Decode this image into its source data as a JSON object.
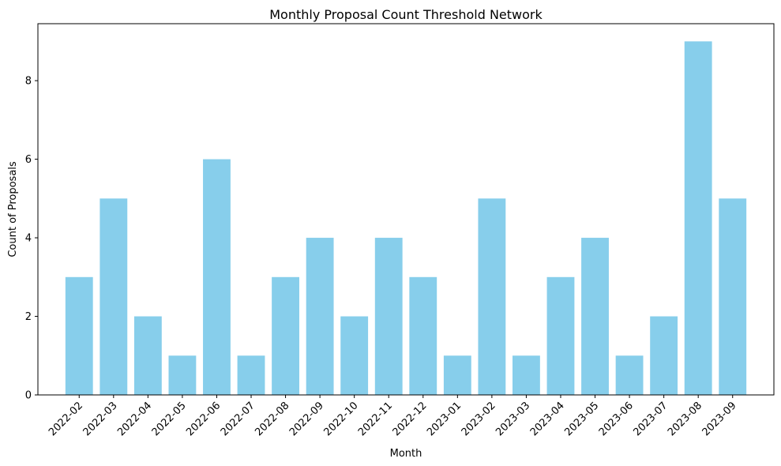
{
  "chart_data": {
    "type": "bar",
    "title": "Monthly Proposal Count Threshold Network",
    "xlabel": "Month",
    "ylabel": "Count of Proposals",
    "categories": [
      "2022-02",
      "2022-03",
      "2022-04",
      "2022-05",
      "2022-06",
      "2022-07",
      "2022-08",
      "2022-09",
      "2022-10",
      "2022-11",
      "2022-12",
      "2023-01",
      "2023-02",
      "2023-03",
      "2023-04",
      "2023-05",
      "2023-06",
      "2023-07",
      "2023-08",
      "2023-09"
    ],
    "values": [
      3,
      5,
      2,
      1,
      6,
      1,
      3,
      4,
      2,
      4,
      3,
      1,
      5,
      1,
      3,
      4,
      1,
      2,
      9,
      5
    ],
    "ylim": [
      0,
      9.45
    ],
    "yticks": [
      0,
      2,
      4,
      6,
      8
    ],
    "bar_color": "#87CEEB",
    "grid": false,
    "legend": "none"
  }
}
